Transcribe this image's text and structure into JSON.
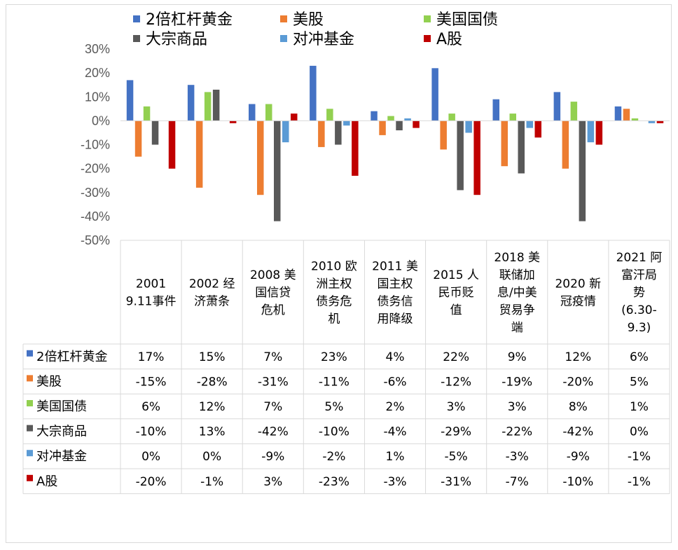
{
  "chart_data": {
    "type": "bar",
    "categories": [
      "2001 9.11事件",
      "2002 经济萧条",
      "2008 美国信贷危机",
      "2010 欧洲主权债务危机",
      "2011 美国主权债务信用降级",
      "2015 人民币贬值",
      "2018 美联储加息/中美贸易争端",
      "2020 新冠疫情",
      "2021 阿富汗局势 (6.30-9.3)"
    ],
    "category_lines": [
      [
        "2001",
        "9.11事件"
      ],
      [
        "2002 经",
        "济萧条"
      ],
      [
        "2008 美",
        "国信贷",
        "危机"
      ],
      [
        "2010 欧",
        "洲主权",
        "债务危",
        "机"
      ],
      [
        "2011 美",
        "国主权",
        "债务信",
        "用降级"
      ],
      [
        "2015 人",
        "民币贬",
        "值"
      ],
      [
        "2018 美",
        "联储加",
        "息/中美",
        "贸易争",
        "端"
      ],
      [
        "2020 新",
        "冠疫情"
      ],
      [
        "2021 阿",
        "富汗局",
        "势",
        "(6.30-",
        "9.3)"
      ]
    ],
    "series": [
      {
        "name": "2倍杠杆黄金",
        "color": "#4472c4",
        "values": [
          17,
          15,
          7,
          23,
          4,
          22,
          9,
          12,
          6
        ],
        "labels": [
          "17%",
          "15%",
          "7%",
          "23%",
          "4%",
          "22%",
          "9%",
          "12%",
          "6%"
        ]
      },
      {
        "name": "美股",
        "color": "#ed7d31",
        "values": [
          -15,
          -28,
          -31,
          -11,
          -6,
          -12,
          -19,
          -20,
          5
        ],
        "labels": [
          "-15%",
          "-28%",
          "-31%",
          "-11%",
          "-6%",
          "-12%",
          "-19%",
          "-20%",
          "5%"
        ]
      },
      {
        "name": "美国国债",
        "color": "#92d050",
        "values": [
          6,
          12,
          7,
          5,
          2,
          3,
          3,
          8,
          1
        ],
        "labels": [
          "6%",
          "12%",
          "7%",
          "5%",
          "2%",
          "3%",
          "3%",
          "8%",
          "1%"
        ]
      },
      {
        "name": "大宗商品",
        "color": "#595959",
        "values": [
          -10,
          13,
          -42,
          -10,
          -4,
          -29,
          -22,
          -42,
          0
        ],
        "labels": [
          "-10%",
          "13%",
          "-42%",
          "-10%",
          "-4%",
          "-29%",
          "-22%",
          "-42%",
          "0%"
        ]
      },
      {
        "name": "对冲基金",
        "color": "#5b9bd5",
        "values": [
          0,
          0,
          -9,
          -2,
          1,
          -5,
          -3,
          -9,
          -1
        ],
        "labels": [
          "0%",
          "0%",
          "-9%",
          "-2%",
          "1%",
          "-5%",
          "-3%",
          "-9%",
          "-1%"
        ]
      },
      {
        "name": "A股",
        "color": "#c00000",
        "values": [
          -20,
          -1,
          3,
          -23,
          -3,
          -31,
          -7,
          -10,
          -1
        ],
        "labels": [
          "-20%",
          "-1%",
          "3%",
          "-23%",
          "-3%",
          "-31%",
          "-7%",
          "-10%",
          "-1%"
        ]
      }
    ],
    "ylim": [
      -50,
      30
    ],
    "yticks": [
      30,
      20,
      10,
      0,
      -10,
      -20,
      -30,
      -40,
      -50
    ],
    "ytick_labels": [
      "30%",
      "20%",
      "10%",
      "0%",
      "-10%",
      "-20%",
      "-30%",
      "-40%",
      "-50%"
    ],
    "legend_position": "top",
    "grid": false,
    "data_table": true
  }
}
